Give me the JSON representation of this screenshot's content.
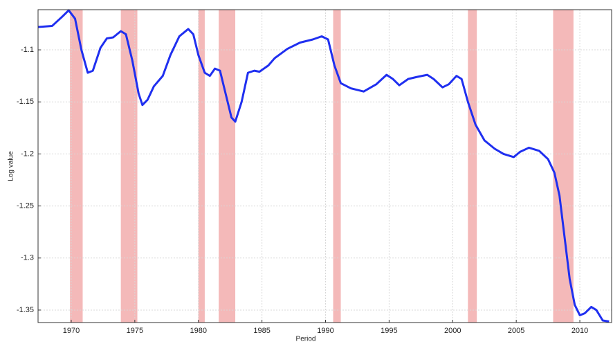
{
  "chart_data": {
    "type": "line",
    "xlabel": "Period",
    "ylabel": "Log value",
    "xlim": [
      1967.39,
      2012.5
    ],
    "ylim": [
      -1.362,
      -1.0614
    ],
    "xticks": [
      1970,
      1975,
      1980,
      1985,
      1990,
      1995,
      2000,
      2005,
      2010
    ],
    "yticks": [
      -1.35,
      -1.3,
      -1.25,
      -1.2,
      -1.15,
      -1.1
    ],
    "grid": true,
    "shaded_regions": {
      "color": "#f4b9b9",
      "spans": [
        [
          1969.9,
          1970.9
        ],
        [
          1973.9,
          1975.2
        ],
        [
          1980.0,
          1980.5
        ],
        [
          1981.6,
          1982.9
        ],
        [
          1990.6,
          1991.2
        ],
        [
          2001.2,
          2001.9
        ],
        [
          2007.9,
          2009.5
        ]
      ]
    },
    "x": [
      1967.4,
      1968.5,
      1969.3,
      1969.8,
      1970.3,
      1970.8,
      1971.3,
      1971.7,
      1972.3,
      1972.8,
      1973.3,
      1973.9,
      1974.3,
      1974.8,
      1975.3,
      1975.6,
      1976.0,
      1976.5,
      1977.2,
      1977.8,
      1978.5,
      1979.2,
      1979.6,
      1980.0,
      1980.5,
      1980.9,
      1981.3,
      1981.7,
      1982.1,
      1982.6,
      1982.9,
      1983.4,
      1983.9,
      1984.4,
      1984.8,
      1985.5,
      1986.0,
      1987.0,
      1988.0,
      1989.0,
      1989.7,
      1990.2,
      1990.7,
      1991.2,
      1992.0,
      1993.0,
      1994.0,
      1994.8,
      1995.3,
      1995.8,
      1996.5,
      1997.2,
      1998.0,
      1998.5,
      1999.2,
      1999.7,
      2000.3,
      2000.7,
      2001.2,
      2001.8,
      2002.5,
      2003.3,
      2004.0,
      2004.8,
      2005.3,
      2006.0,
      2006.8,
      2007.5,
      2008.0,
      2008.4,
      2008.8,
      2009.2,
      2009.6,
      2010.0,
      2010.4,
      2010.9,
      2011.3,
      2011.8,
      2012.3
    ],
    "series": [
      {
        "color": "#1f2ff0",
        "values": [
          -1.078,
          -1.077,
          -1.068,
          -1.062,
          -1.07,
          -1.1,
          -1.122,
          -1.12,
          -1.098,
          -1.089,
          -1.088,
          -1.082,
          -1.085,
          -1.11,
          -1.142,
          -1.153,
          -1.148,
          -1.135,
          -1.125,
          -1.105,
          -1.087,
          -1.08,
          -1.085,
          -1.105,
          -1.122,
          -1.125,
          -1.118,
          -1.12,
          -1.14,
          -1.165,
          -1.169,
          -1.15,
          -1.122,
          -1.12,
          -1.121,
          -1.115,
          -1.108,
          -1.099,
          -1.093,
          -1.09,
          -1.087,
          -1.09,
          -1.115,
          -1.132,
          -1.137,
          -1.14,
          -1.133,
          -1.124,
          -1.128,
          -1.134,
          -1.128,
          -1.126,
          -1.124,
          -1.128,
          -1.136,
          -1.133,
          -1.125,
          -1.128,
          -1.15,
          -1.172,
          -1.187,
          -1.195,
          -1.2,
          -1.203,
          -1.198,
          -1.194,
          -1.197,
          -1.205,
          -1.218,
          -1.24,
          -1.28,
          -1.32,
          -1.345,
          -1.355,
          -1.353,
          -1.347,
          -1.35,
          -1.36,
          -1.361
        ]
      }
    ]
  }
}
